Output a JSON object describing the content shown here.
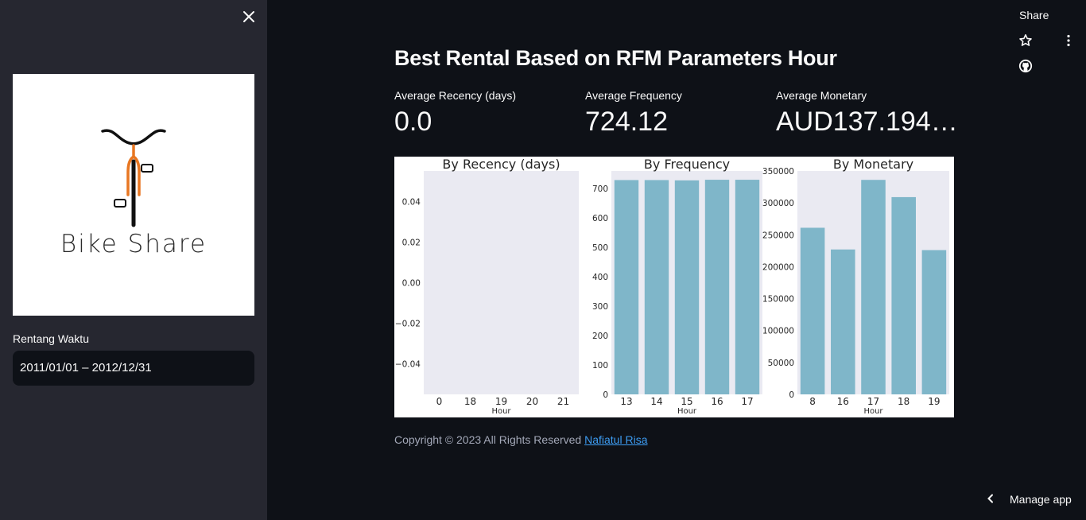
{
  "sidebar": {
    "logo_text": "Bike Share",
    "range_label": "Rentang Waktu",
    "range_value": "2011/01/01 – 2012/12/31"
  },
  "toolbar": {
    "share_label": "Share"
  },
  "main": {
    "title": "Best Rental Based on RFM Parameters Hour",
    "metrics": [
      {
        "label": "Average Recency (days)",
        "value": "0.0"
      },
      {
        "label": "Average Frequency",
        "value": "724.12"
      },
      {
        "label": "Average Monetary",
        "value": "AUD137.194,..."
      }
    ],
    "footer_text": "Copyright © 2023 All Rights Reserved ",
    "footer_link": "Nafiatul Risa"
  },
  "manage_label": "Manage app",
  "colors": {
    "bar": "#7fb6c9",
    "plot_bg": "#eaeaf2",
    "link": "#3d9df3"
  },
  "chart_data": [
    {
      "type": "bar",
      "title": "By Recency (days)",
      "xlabel": "Hour",
      "ylabel": "",
      "categories": [
        "0",
        "18",
        "19",
        "20",
        "21"
      ],
      "values": [
        0,
        0,
        0,
        0,
        0
      ],
      "ylim": [
        -0.055,
        0.055
      ],
      "yticks": [
        0.04,
        0.02,
        0.0,
        -0.02,
        -0.04
      ],
      "ytick_labels": [
        "0.04",
        "0.02",
        "0.00",
        "−0.02",
        "−0.04"
      ]
    },
    {
      "type": "bar",
      "title": "By Frequency",
      "xlabel": "Hour",
      "ylabel": "",
      "categories": [
        "13",
        "14",
        "15",
        "16",
        "17"
      ],
      "values": [
        729,
        729,
        728,
        730,
        730
      ],
      "ylim": [
        0,
        760
      ],
      "yticks": [
        0,
        100,
        200,
        300,
        400,
        500,
        600,
        700
      ],
      "ytick_labels": [
        "0",
        "100",
        "200",
        "300",
        "400",
        "500",
        "600",
        "700"
      ]
    },
    {
      "type": "bar",
      "title": "By Monetary",
      "xlabel": "Hour",
      "ylabel": "",
      "categories": [
        "8",
        "16",
        "17",
        "18",
        "19"
      ],
      "values": [
        261000,
        227000,
        336000,
        309000,
        226000
      ],
      "ylim": [
        0,
        350000
      ],
      "yticks": [
        0,
        50000,
        100000,
        150000,
        200000,
        250000,
        300000,
        350000
      ],
      "ytick_labels": [
        "0",
        "50000",
        "100000",
        "150000",
        "200000",
        "250000",
        "300000",
        "350000"
      ]
    }
  ]
}
